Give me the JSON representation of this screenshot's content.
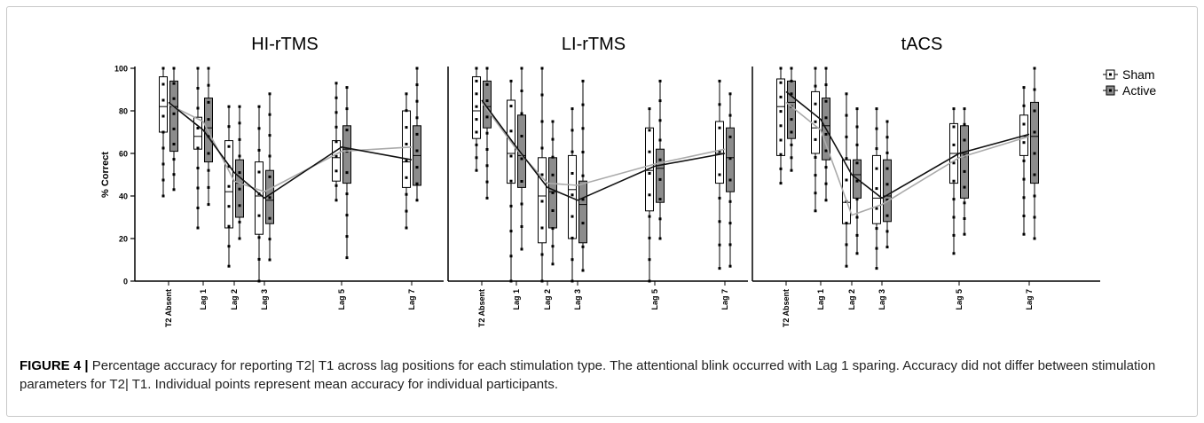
{
  "figure": {
    "ylabel": "% Correct",
    "legend": [
      "Sham",
      "Active"
    ],
    "caption_label": "FIGURE 4 |",
    "caption_text": "Percentage accuracy for reporting T2| T1 across lag positions for each stimulation type. The attentional blink occurred with Lag 1 sparing. Accuracy did not differ between stimulation parameters for T2| T1. Individual points represent mean accuracy for individual participants."
  },
  "colors": {
    "sham_fill": "#ffffff",
    "active_fill": "#8c8c8c",
    "sham_line": "#aaaaaa",
    "active_line": "#111111"
  },
  "chart_data": [
    {
      "type": "box",
      "title": "HI-rTMS",
      "categories": [
        "T2 Absent",
        "Lag 1",
        "Lag 2",
        "Lag 3",
        "Lag 5",
        "Lag 7"
      ],
      "ylabel": "% Correct",
      "ylim": [
        0,
        100
      ],
      "yticks": [
        0,
        20,
        40,
        60,
        80,
        100
      ],
      "legend_position": "right",
      "series": [
        {
          "name": "Sham",
          "means": [
            83,
            75,
            47,
            42,
            61,
            63
          ],
          "box": [
            [
              70,
              82,
              96
            ],
            [
              62,
              68,
              77
            ],
            [
              25,
              42,
              66
            ],
            [
              22,
              40,
              56
            ],
            [
              47,
              58,
              66
            ],
            [
              44,
              56,
              80
            ]
          ],
          "whisker": [
            [
              40,
              100
            ],
            [
              25,
              100
            ],
            [
              7,
              82
            ],
            [
              0,
              82
            ],
            [
              38,
              93
            ],
            [
              25,
              88
            ]
          ]
        },
        {
          "name": "Active",
          "means": [
            84,
            71,
            51,
            39,
            63,
            57
          ],
          "box": [
            [
              61,
              82,
              94
            ],
            [
              56,
              72,
              86
            ],
            [
              30,
              46,
              57
            ],
            [
              27,
              38,
              52
            ],
            [
              46,
              62,
              73
            ],
            [
              45,
              59,
              73
            ]
          ],
          "whisker": [
            [
              43,
              100
            ],
            [
              36,
              100
            ],
            [
              20,
              82
            ],
            [
              10,
              88
            ],
            [
              11,
              91
            ],
            [
              38,
              100
            ]
          ]
        }
      ]
    },
    {
      "type": "box",
      "title": "LI-rTMS",
      "categories": [
        "T2 Absent",
        "Lag 1",
        "Lag 2",
        "Lag 3",
        "Lag 5",
        "Lag 7"
      ],
      "ylabel": "",
      "ylim": [
        0,
        100
      ],
      "series": [
        {
          "name": "Sham",
          "means": [
            84,
            62,
            46,
            45,
            55,
            62
          ],
          "box": [
            [
              67,
              80,
              96
            ],
            [
              46,
              60,
              85
            ],
            [
              18,
              40,
              58
            ],
            [
              20,
              43,
              59
            ],
            [
              33,
              52,
              72
            ],
            [
              46,
              60,
              75
            ]
          ],
          "whisker": [
            [
              52,
              100
            ],
            [
              0,
              94
            ],
            [
              0,
              100
            ],
            [
              0,
              81
            ],
            [
              0,
              81
            ],
            [
              6,
              94
            ]
          ]
        },
        {
          "name": "Active",
          "means": [
            85,
            63,
            44,
            38,
            54,
            60
          ],
          "box": [
            [
              72,
              82,
              94
            ],
            [
              44,
              59,
              78
            ],
            [
              25,
              42,
              58
            ],
            [
              18,
              36,
              47
            ],
            [
              37,
              53,
              62
            ],
            [
              42,
              58,
              72
            ]
          ],
          "whisker": [
            [
              39,
              100
            ],
            [
              15,
              100
            ],
            [
              8,
              75
            ],
            [
              5,
              94
            ],
            [
              20,
              94
            ],
            [
              7,
              88
            ]
          ]
        }
      ]
    },
    {
      "type": "box",
      "title": "tACS",
      "categories": [
        "T2 Absent",
        "Lag 1",
        "Lag 2",
        "Lag 3",
        "Lag 5",
        "Lag 7"
      ],
      "ylabel": "",
      "ylim": [
        0,
        100
      ],
      "series": [
        {
          "name": "Sham",
          "means": [
            84,
            71,
            31,
            36,
            58,
            68
          ],
          "box": [
            [
              59,
              82,
              95
            ],
            [
              60,
              72,
              89
            ],
            [
              27,
              37,
              57
            ],
            [
              27,
              39,
              59
            ],
            [
              46,
              60,
              74
            ],
            [
              59,
              68,
              78
            ]
          ],
          "whisker": [
            [
              46,
              100
            ],
            [
              33,
              100
            ],
            [
              7,
              88
            ],
            [
              6,
              81
            ],
            [
              13,
              81
            ],
            [
              22,
              91
            ]
          ]
        },
        {
          "name": "Active",
          "means": [
            89,
            76,
            50,
            39,
            60,
            69
          ],
          "box": [
            [
              67,
              84,
              94
            ],
            [
              57,
              73,
              86
            ],
            [
              39,
              50,
              57
            ],
            [
              28,
              40,
              57
            ],
            [
              39,
              60,
              73
            ],
            [
              46,
              68,
              84
            ]
          ],
          "whisker": [
            [
              52,
              100
            ],
            [
              38,
              100
            ],
            [
              13,
              81
            ],
            [
              16,
              75
            ],
            [
              22,
              81
            ],
            [
              20,
              100
            ]
          ]
        }
      ]
    }
  ]
}
